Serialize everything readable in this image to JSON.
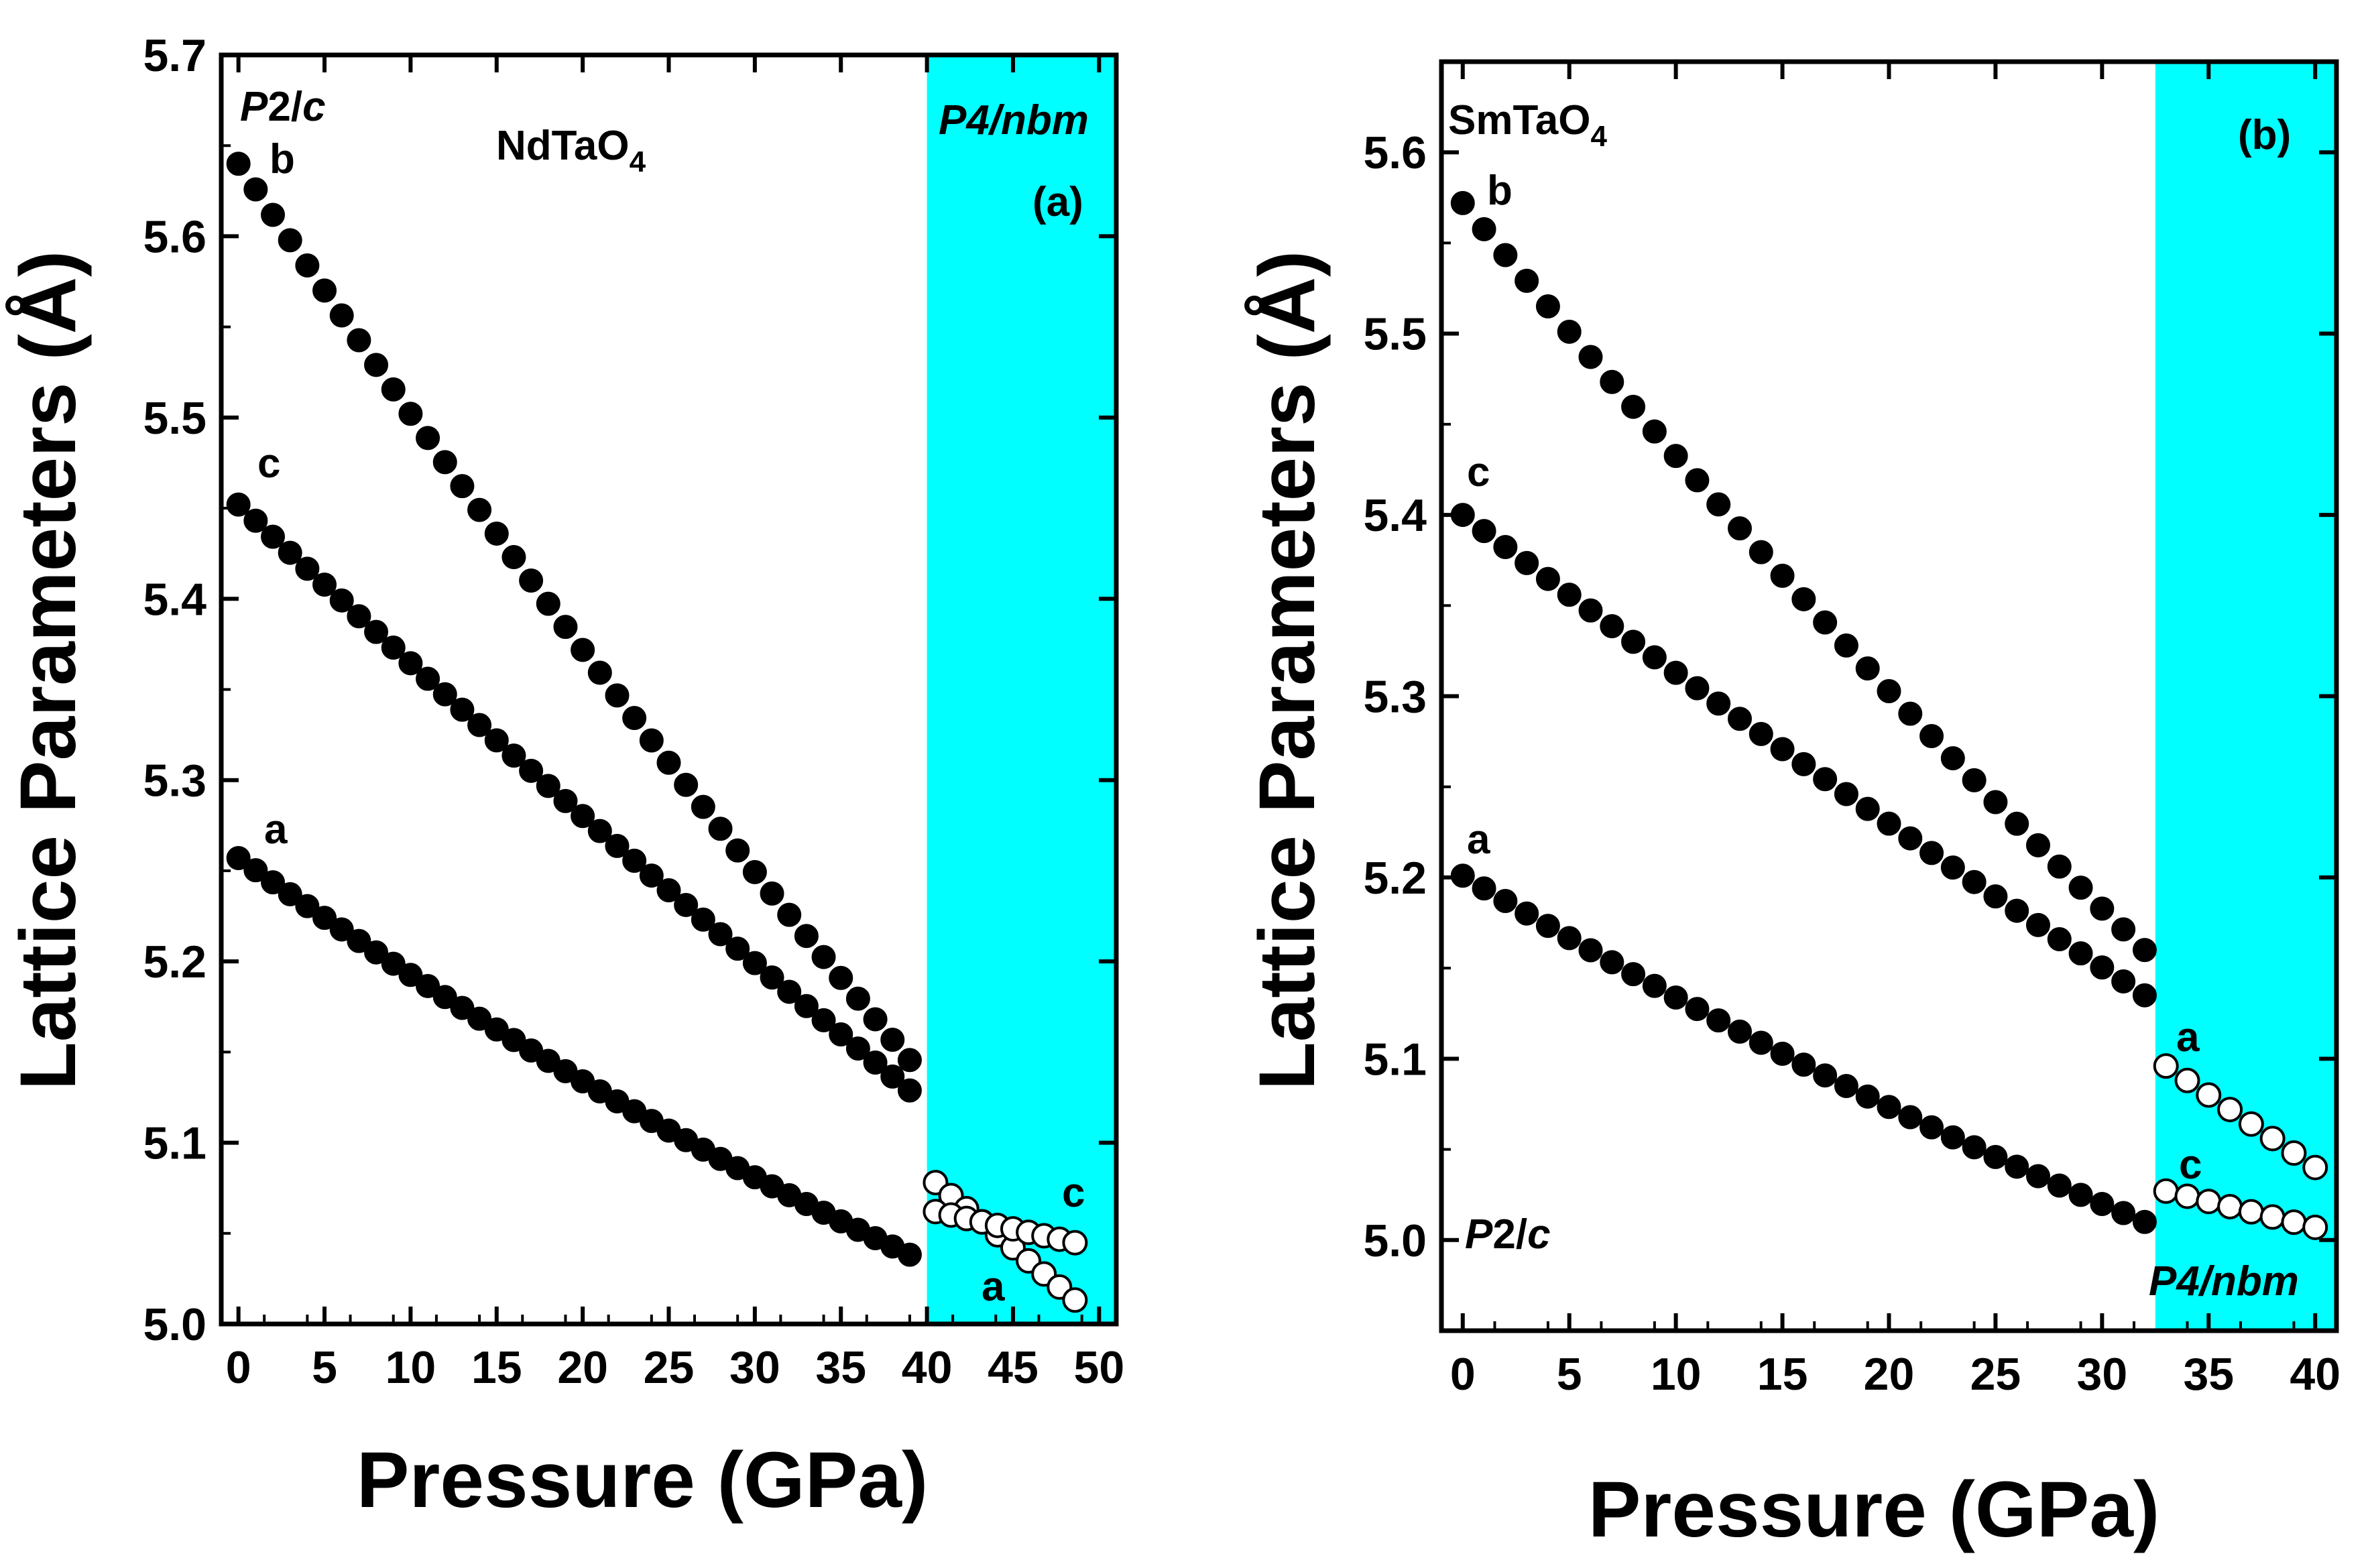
{
  "colors": {
    "phase_region": "#00FFFF",
    "low_pressure_marker": "#000000",
    "high_pressure_marker_fill": "#FFFFFF",
    "high_pressure_marker_edge": "#000000",
    "axes": "#000000",
    "background": "#FFFFFF"
  },
  "chart_data": [
    {
      "type": "scatter",
      "panel": "(a)",
      "title": "NdTaO4",
      "title_base": "NdTaO",
      "title_sub": "4",
      "xlabel": "Pressure (GPa)",
      "ylabel": "Lattice Parameters (Å)",
      "xlim": [
        -1,
        51
      ],
      "ylim": [
        5.0,
        5.7
      ],
      "xticks": [
        "0",
        "5",
        "10",
        "15",
        "20",
        "25",
        "30",
        "35",
        "40",
        "45",
        "50"
      ],
      "yticks": [
        "5.0",
        "5.1",
        "5.2",
        "5.3",
        "5.4",
        "5.5",
        "5.6",
        "5.7"
      ],
      "transition_pressure": 40,
      "phases": {
        "low": "P2/c",
        "high": "P4/nbm"
      },
      "phase_low_italic": "P",
      "phase_low_regular": "2/",
      "phase_low_italic2": "c",
      "phase_high_italic": "P4/nbm",
      "shaded_region": [
        40,
        51
      ],
      "series": [
        {
          "name": "b",
          "phase": "P2/c",
          "marker": "filled",
          "x_range": [
            0,
            39.5
          ],
          "step": 1,
          "y_start": 5.64,
          "y_end": 5.14,
          "curvature": 0.06
        },
        {
          "name": "c",
          "phase": "P2/c",
          "marker": "filled",
          "x_range": [
            0,
            39.5
          ],
          "step": 1,
          "y_start": 5.452,
          "y_end": 5.125,
          "curvature": 0.025
        },
        {
          "name": "a",
          "phase": "P2/c",
          "marker": "filled",
          "x_range": [
            0,
            39.5
          ],
          "step": 1,
          "y_start": 5.257,
          "y_end": 5.036,
          "curvature": 0.045
        },
        {
          "name": "a",
          "phase": "P4/nbm",
          "marker": "open",
          "x_range": [
            40.5,
            49
          ],
          "step": 0.9,
          "y_start": 5.078,
          "y_end": 5.01,
          "curvature": 0.0
        },
        {
          "name": "c",
          "phase": "P4/nbm",
          "marker": "open",
          "x_range": [
            40.5,
            49
          ],
          "step": 0.9,
          "y_start": 5.062,
          "y_end": 5.044,
          "curvature": 0.0
        }
      ],
      "annotations": [
        "b",
        "c",
        "a",
        "a",
        "c"
      ]
    },
    {
      "type": "scatter",
      "panel": "(b)",
      "title": "SmTaO4",
      "title_base": "SmTaO",
      "title_sub": "4",
      "xlabel": "Pressure (GPa)",
      "ylabel": "Lattice Parameters (Å)",
      "xlim": [
        -1,
        41
      ],
      "ylim": [
        4.95,
        5.65
      ],
      "xticks": [
        "0",
        "5",
        "10",
        "15",
        "20",
        "25",
        "30",
        "35",
        "40"
      ],
      "yticks": [
        "5.0",
        "5.1",
        "5.2",
        "5.3",
        "5.4",
        "5.5",
        "5.6"
      ],
      "transition_pressure": 32.5,
      "phases": {
        "low": "P2/c",
        "high": "P4/nbm"
      },
      "phase_low_italic": "P",
      "phase_low_regular": "2/",
      "phase_low_italic2": "c",
      "phase_high_italic": "P4/nbm",
      "shaded_region": [
        32.5,
        41
      ],
      "series": [
        {
          "name": "b",
          "phase": "P2/c",
          "marker": "filled",
          "x_range": [
            0,
            32
          ],
          "step": 1,
          "y_start": 5.572,
          "y_end": 5.16,
          "curvature": 0.05
        },
        {
          "name": "c",
          "phase": "P2/c",
          "marker": "filled",
          "x_range": [
            0,
            32
          ],
          "step": 1,
          "y_start": 5.4,
          "y_end": 5.135,
          "curvature": 0.02
        },
        {
          "name": "a",
          "phase": "P2/c",
          "marker": "filled",
          "x_range": [
            0,
            32
          ],
          "step": 1,
          "y_start": 5.201,
          "y_end": 5.01,
          "curvature": 0.035
        },
        {
          "name": "a",
          "phase": "P4/nbm",
          "marker": "open",
          "x_range": [
            33,
            40
          ],
          "step": 1,
          "y_start": 5.096,
          "y_end": 5.04,
          "curvature": 0.0
        },
        {
          "name": "c",
          "phase": "P4/nbm",
          "marker": "open",
          "x_range": [
            33,
            40
          ],
          "step": 1,
          "y_start": 5.027,
          "y_end": 5.007,
          "curvature": 0.0
        }
      ],
      "annotations": [
        "b",
        "c",
        "a",
        "a",
        "c"
      ]
    }
  ]
}
